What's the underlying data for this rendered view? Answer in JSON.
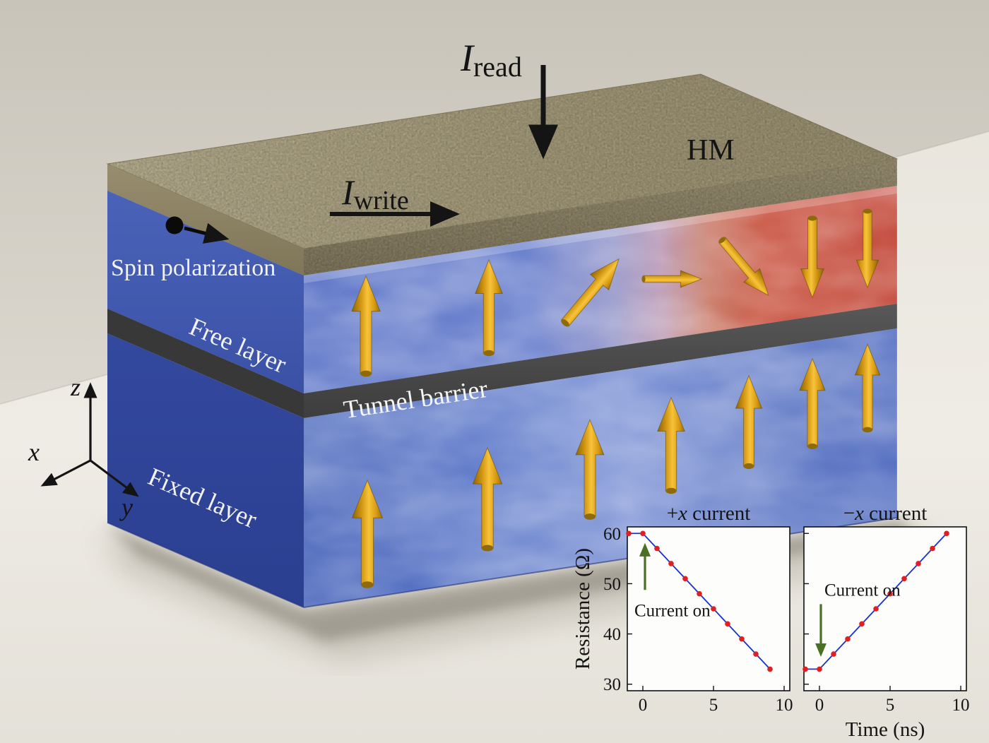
{
  "figure": {
    "labels": {
      "i_read": {
        "symbol": "I",
        "subscript": "read"
      },
      "i_write": {
        "symbol": "I",
        "subscript": "write"
      },
      "hm": "HM",
      "spin_polarization": "Spin polarization",
      "free_layer": "Free layer",
      "tunnel_barrier": "Tunnel barrier",
      "fixed_layer": "Fixed layer"
    },
    "axes_triad": {
      "x": "x",
      "y": "y",
      "z": "z"
    },
    "colors": {
      "heavy_metal_tan": "#b3a884",
      "ferromagnet_blue": "#4a63bb",
      "reversed_red": "#bd3828",
      "barrier_gray": "#474747",
      "arrow_gold": "#e2a622",
      "current_green": "#4a7023",
      "line_blue": "#1933cc",
      "marker_red": "#e02020"
    },
    "free_layer_magnetization_deg": [
      0,
      0,
      40,
      90,
      140,
      180,
      180
    ],
    "fixed_layer_magnetization_deg": [
      0,
      0,
      0,
      0,
      0,
      0,
      0
    ]
  },
  "chart_data": [
    {
      "type": "line",
      "title": {
        "prefix": "+",
        "var": "x",
        "rest": " current"
      },
      "xlabel": "",
      "ylabel": "Resistance (Ω)",
      "x": [
        -1,
        0,
        1,
        2,
        3,
        4,
        5,
        6,
        7,
        8,
        9
      ],
      "y": [
        60,
        60,
        57,
        54,
        51,
        48,
        45,
        42,
        39,
        36,
        33
      ],
      "xticks": [
        0,
        5,
        10
      ],
      "yticks": [
        60,
        50,
        40,
        30
      ],
      "xlim": [
        -1.1,
        10.4
      ],
      "ylim": [
        28.7,
        61.3
      ],
      "grid": false,
      "annotation": "Current on",
      "annotation_arrow": "up",
      "show_ytick_labels": true
    },
    {
      "type": "line",
      "title": {
        "prefix": "−",
        "var": "x",
        "rest": " current"
      },
      "xlabel": "Time (ns)",
      "ylabel": "",
      "x": [
        -1,
        0,
        1,
        2,
        3,
        4,
        5,
        6,
        7,
        8,
        9
      ],
      "y": [
        33,
        33,
        36,
        39,
        42,
        45,
        48,
        51,
        54,
        57,
        60
      ],
      "xticks": [
        0,
        5,
        10
      ],
      "yticks": [
        60,
        50,
        40,
        30
      ],
      "xlim": [
        -1.1,
        10.4
      ],
      "ylim": [
        28.7,
        61.3
      ],
      "grid": false,
      "annotation": "Current on",
      "annotation_arrow": "down",
      "show_ytick_labels": false
    }
  ]
}
